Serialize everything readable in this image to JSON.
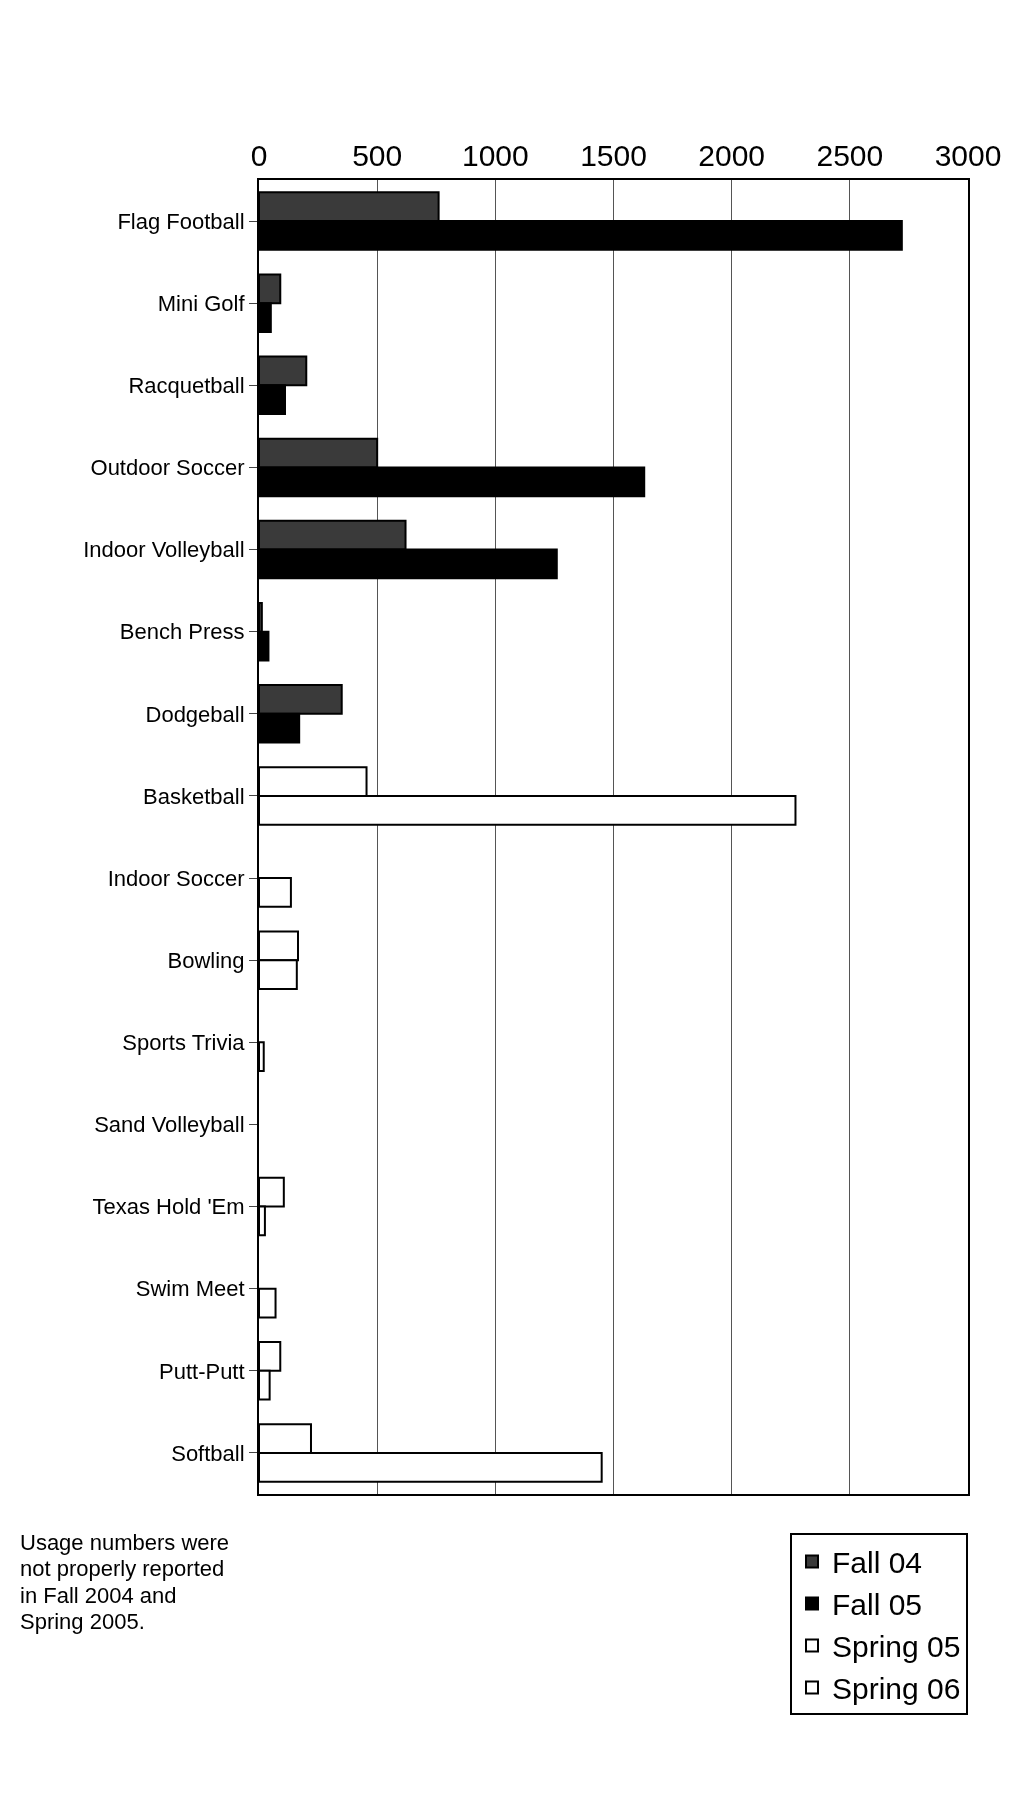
{
  "chart_data": {
    "type": "bar",
    "orientation": "horizontal",
    "categories": [
      "Flag Football",
      "Mini Golf",
      "Racquetball",
      "Outdoor Soccer",
      "Indoor Volleyball",
      "Bench Press",
      "Dodgeball",
      "Basketball",
      "Indoor Soccer",
      "Bowling",
      "Sports Trivia",
      "Sand Volleyball",
      "Texas Hold 'Em",
      "Swim Meet",
      "Putt-Putt",
      "Softball"
    ],
    "series": [
      {
        "name": "Fall 04",
        "color": "#3a3a3a",
        "values": [
          760,
          90,
          200,
          500,
          620,
          12,
          350,
          null,
          null,
          null,
          null,
          null,
          null,
          null,
          null,
          null
        ]
      },
      {
        "name": "Fall 05",
        "color": "#000000",
        "values": [
          2720,
          50,
          110,
          1630,
          1260,
          40,
          170,
          null,
          null,
          null,
          null,
          null,
          null,
          null,
          null,
          null
        ]
      },
      {
        "name": "Spring 05",
        "color": "#ffffff",
        "values": [
          null,
          null,
          null,
          null,
          null,
          null,
          null,
          455,
          null,
          165,
          null,
          null,
          105,
          null,
          90,
          220
        ]
      },
      {
        "name": "Spring 06",
        "color": "#ffffff",
        "values": [
          null,
          null,
          null,
          null,
          null,
          null,
          null,
          2270,
          135,
          160,
          20,
          null,
          25,
          70,
          45,
          1450
        ]
      }
    ],
    "xlim": [
      0,
      3000
    ],
    "xticks": [
      0,
      500,
      1000,
      1500,
      2000,
      2500,
      3000
    ],
    "grid": "x",
    "legend": "bottom right",
    "annotations": [
      "Usage numbers were not properly reported in Fall 2004 and Spring 2005."
    ]
  }
}
